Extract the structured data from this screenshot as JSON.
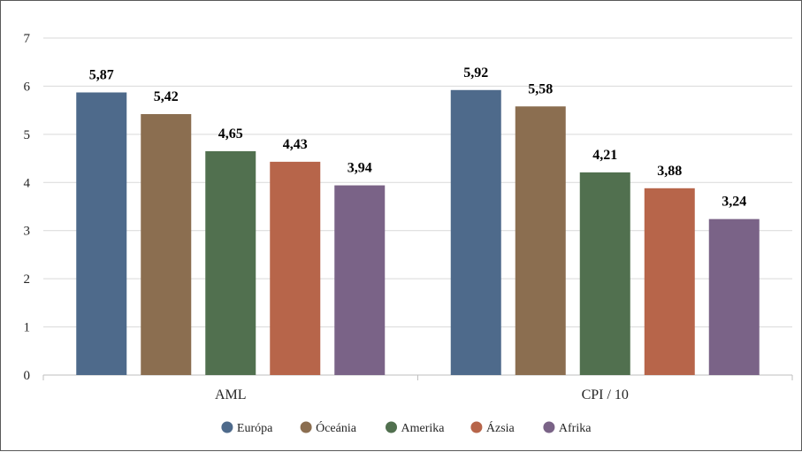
{
  "chart_data": {
    "type": "bar",
    "categories": [
      "AML",
      "CPI / 10"
    ],
    "series": [
      {
        "name": "Európa",
        "color": "#4e6a8b",
        "values": [
          5.87,
          5.92
        ],
        "labels": [
          "5,87",
          "5,92"
        ]
      },
      {
        "name": "Óceánia",
        "color": "#8b6e50",
        "values": [
          5.42,
          5.58
        ],
        "labels": [
          "5,42",
          "5,58"
        ]
      },
      {
        "name": "Amerika",
        "color": "#51704f",
        "values": [
          4.65,
          4.21
        ],
        "labels": [
          "4,65",
          "4,21"
        ]
      },
      {
        "name": "Ázsia",
        "color": "#b7654a",
        "values": [
          4.43,
          3.88
        ],
        "labels": [
          "4,43",
          "3,88"
        ]
      },
      {
        "name": "Afrika",
        "color": "#7a6387",
        "values": [
          3.94,
          3.24
        ],
        "labels": [
          "3,94",
          "3,24"
        ]
      }
    ],
    "ylim": [
      0,
      7
    ],
    "yticks": [
      "0",
      "1",
      "2",
      "3",
      "4",
      "5",
      "6",
      "7"
    ],
    "grid": true,
    "legend": "bottom",
    "title": "",
    "xlabel": "",
    "ylabel": ""
  }
}
